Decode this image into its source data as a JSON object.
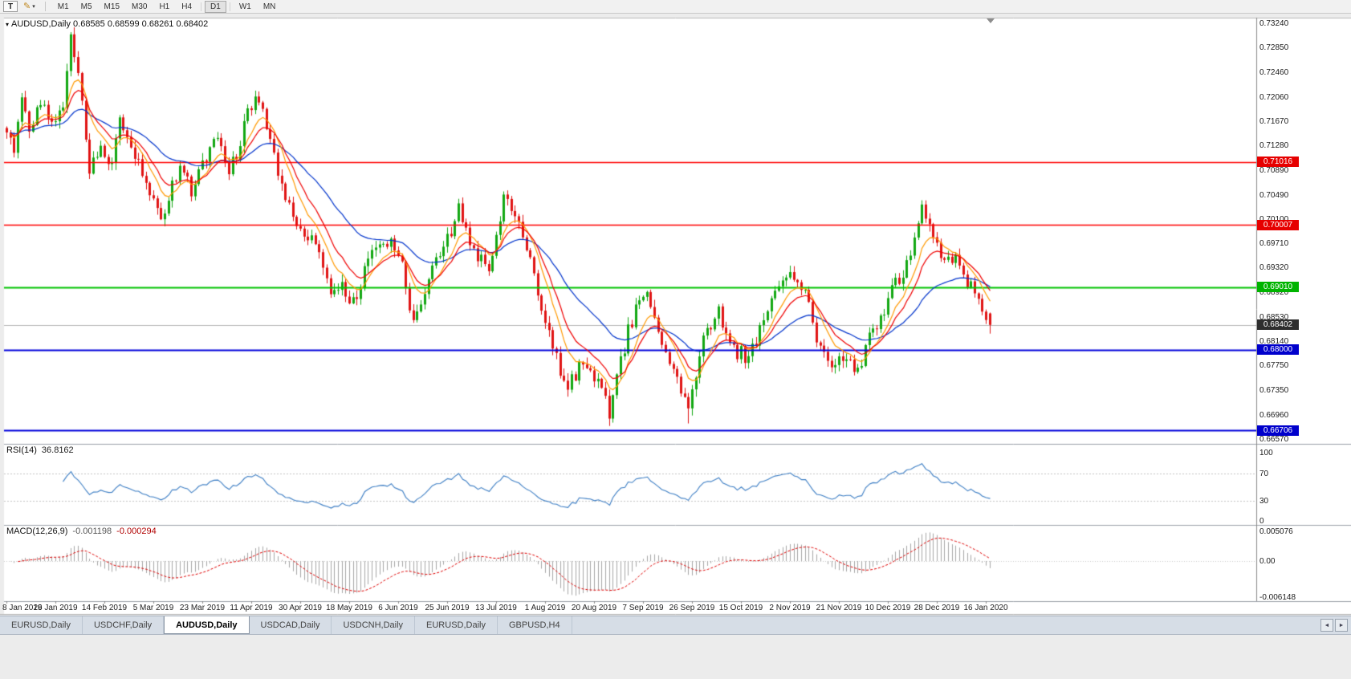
{
  "icons": {
    "pencil": "✎",
    "dropdown": "▾",
    "title_marker": "▾",
    "tab_left": "◄",
    "tab_right": "►"
  },
  "toolbar": {
    "text_tool_label": "T",
    "timeframes": [
      "M1",
      "M5",
      "M15",
      "M30",
      "H1",
      "H4",
      "D1",
      "W1",
      "MN"
    ],
    "active_timeframe": "D1"
  },
  "chart": {
    "title": {
      "display": "AUDUSD,Daily 0.68585 0.68599 0.68261 0.68402"
    },
    "price_axis": {
      "labels": [
        "0.73240",
        "0.72850",
        "0.72460",
        "0.72060",
        "0.71670",
        "0.71280",
        "0.70890",
        "0.70490",
        "0.70100",
        "0.69710",
        "0.69320",
        "0.68920",
        "0.68530",
        "0.68140",
        "0.67750",
        "0.67350",
        "0.66960",
        "0.66570"
      ]
    },
    "hlines": [
      {
        "price": 0.71016,
        "label": "0.71016",
        "line_color": "#ff0000",
        "label_bg": "#e60000",
        "width": 1.4
      },
      {
        "price": 0.70007,
        "label": "0.70007",
        "line_color": "#ff0000",
        "label_bg": "#e60000",
        "width": 1.4
      },
      {
        "price": 0.6901,
        "label": "0.69010",
        "line_color": "#00c400",
        "label_bg": "#00b400",
        "width": 2
      },
      {
        "price": 0.68,
        "label": "0.68000",
        "line_color": "#0000dc",
        "label_bg": "#0000cc",
        "width": 2
      },
      {
        "price": 0.66706,
        "label": "0.66706",
        "line_color": "#0000dc",
        "label_bg": "#0000cc",
        "width": 2
      }
    ],
    "bid": {
      "price": 0.68402,
      "label": "0.68402",
      "line_color": "#b4b4b4",
      "label_bg": "#2e2e2e"
    },
    "date_axis": {
      "labels": [
        "8 Jan 2019",
        "26 Jan 2019",
        "14 Feb 2019",
        "5 Mar 2019",
        "23 Mar 2019",
        "11 Apr 2019",
        "30 Apr 2019",
        "18 May 2019",
        "6 Jun 2019",
        "25 Jun 2019",
        "13 Jul 2019",
        "1 Aug 2019",
        "20 Aug 2019",
        "7 Sep 2019",
        "26 Sep 2019",
        "15 Oct 2019",
        "2 Nov 2019",
        "21 Nov 2019",
        "10 Dec 2019",
        "28 Dec 2019",
        "16 Jan 2020"
      ]
    }
  },
  "rsi_panel": {
    "label": "RSI(14)",
    "value": "36.8162",
    "axis_labels": [
      "100",
      "70",
      "30",
      "0"
    ]
  },
  "macd_panel": {
    "label": "MACD(12,26,9)",
    "value_main": "-0.001198",
    "value_signal": "-0.000294",
    "axis_labels": [
      {
        "text": "0.005076",
        "value": 0.005076
      },
      {
        "text": "0.00",
        "value": 0
      },
      {
        "text": "-0.006148",
        "value": -0.006148
      }
    ]
  },
  "tabs": {
    "items": [
      {
        "label": "EURUSD,Daily",
        "active": false
      },
      {
        "label": "USDCHF,Daily",
        "active": false
      },
      {
        "label": "AUDUSD,Daily",
        "active": true
      },
      {
        "label": "USDCAD,Daily",
        "active": false
      },
      {
        "label": "USDCNH,Daily",
        "active": false
      },
      {
        "label": "EURUSD,Daily",
        "active": false
      },
      {
        "label": "GBPUSD,H4",
        "active": false
      }
    ]
  },
  "chart_data": {
    "type": "candlestick",
    "symbol": "AUDUSD",
    "timeframe": "Daily",
    "seed": 9,
    "current_ohlc": {
      "open": 0.68585,
      "high": 0.68599,
      "low": 0.68261,
      "close": 0.68402
    },
    "y_axis": {
      "min": 0.6657,
      "max": 0.7324
    },
    "x_axis": {
      "bar_count": 262,
      "bars_per_tick": 13,
      "tick_labels": [
        "8 Jan 2019",
        "26 Jan 2019",
        "14 Feb 2019",
        "5 Mar 2019",
        "23 Mar 2019",
        "11 Apr 2019",
        "30 Apr 2019",
        "18 May 2019",
        "6 Jun 2019",
        "25 Jun 2019",
        "13 Jul 2019",
        "1 Aug 2019",
        "20 Aug 2019",
        "7 Sep 2019",
        "26 Sep 2019",
        "15 Oct 2019",
        "2 Nov 2019",
        "21 Nov 2019",
        "10 Dec 2019",
        "28 Dec 2019",
        "16 Jan 2020"
      ]
    },
    "bull_color": "#12a812",
    "bear_color": "#e01414",
    "price_path_anchors": [
      [
        0,
        0.7148
      ],
      [
        2,
        0.712
      ],
      [
        4,
        0.7205
      ],
      [
        6,
        0.715
      ],
      [
        9,
        0.7196
      ],
      [
        12,
        0.7163
      ],
      [
        15,
        0.719
      ],
      [
        17,
        0.7295
      ],
      [
        19,
        0.7242
      ],
      [
        22,
        0.7088
      ],
      [
        25,
        0.7125
      ],
      [
        28,
        0.71
      ],
      [
        30,
        0.7168
      ],
      [
        33,
        0.712
      ],
      [
        36,
        0.7082
      ],
      [
        39,
        0.7042
      ],
      [
        41,
        0.7015
      ],
      [
        44,
        0.706
      ],
      [
        46,
        0.709
      ],
      [
        49,
        0.7052
      ],
      [
        53,
        0.7105
      ],
      [
        56,
        0.714
      ],
      [
        59,
        0.7085
      ],
      [
        62,
        0.713
      ],
      [
        64,
        0.7185
      ],
      [
        67,
        0.7205
      ],
      [
        70,
        0.7135
      ],
      [
        74,
        0.7035
      ],
      [
        78,
        0.6995
      ],
      [
        82,
        0.6972
      ],
      [
        86,
        0.6895
      ],
      [
        89,
        0.691
      ],
      [
        91,
        0.6868
      ],
      [
        94,
        0.6905
      ],
      [
        96,
        0.6945
      ],
      [
        100,
        0.6975
      ],
      [
        104,
        0.6958
      ],
      [
        106,
        0.69
      ],
      [
        108,
        0.6848
      ],
      [
        111,
        0.6895
      ],
      [
        113,
        0.6925
      ],
      [
        118,
        0.699
      ],
      [
        120,
        0.703
      ],
      [
        124,
        0.6958
      ],
      [
        128,
        0.6925
      ],
      [
        132,
        0.7048
      ],
      [
        136,
        0.7005
      ],
      [
        140,
        0.6915
      ],
      [
        144,
        0.6825
      ],
      [
        146,
        0.678
      ],
      [
        149,
        0.6745
      ],
      [
        152,
        0.6775
      ],
      [
        155,
        0.6762
      ],
      [
        158,
        0.6745
      ],
      [
        160,
        0.67
      ],
      [
        163,
        0.679
      ],
      [
        168,
        0.688
      ],
      [
        170,
        0.6888
      ],
      [
        174,
        0.681
      ],
      [
        177,
        0.6775
      ],
      [
        181,
        0.6705
      ],
      [
        185,
        0.6825
      ],
      [
        189,
        0.686
      ],
      [
        193,
        0.68
      ],
      [
        197,
        0.679
      ],
      [
        201,
        0.685
      ],
      [
        205,
        0.691
      ],
      [
        209,
        0.692
      ],
      [
        212,
        0.6895
      ],
      [
        215,
        0.681
      ],
      [
        219,
        0.678
      ],
      [
        223,
        0.679
      ],
      [
        226,
        0.676
      ],
      [
        229,
        0.682
      ],
      [
        232,
        0.685
      ],
      [
        236,
        0.691
      ],
      [
        239,
        0.693
      ],
      [
        243,
        0.703
      ],
      [
        246,
        0.6985
      ],
      [
        249,
        0.694
      ],
      [
        252,
        0.6955
      ],
      [
        255,
        0.6905
      ],
      [
        258,
        0.688
      ],
      [
        261,
        0.684
      ]
    ],
    "spike_lows": {
      "160": 0.6678,
      "181": 0.6682
    },
    "spike_highs": {
      "17": 0.73,
      "243": 0.704
    },
    "horizontal_lines": [
      {
        "price": 0.71016,
        "color": "#ff0000"
      },
      {
        "price": 0.70007,
        "color": "#ff0000"
      },
      {
        "price": 0.6901,
        "color": "#00c400"
      },
      {
        "price": 0.68,
        "color": "#0000dc"
      },
      {
        "price": 0.66706,
        "color": "#0000dc"
      }
    ],
    "bid_line": {
      "price": 0.68402,
      "color": "#b4b4b4"
    },
    "moving_averages": [
      {
        "period": 8,
        "type": "ema",
        "color": "#ff9900"
      },
      {
        "period": 13,
        "type": "ema",
        "color": "#f00000"
      },
      {
        "period": 34,
        "type": "ema",
        "color": "#0033cc"
      }
    ],
    "indicators": [
      {
        "name": "RSI",
        "period": 14,
        "value": 36.8162,
        "levels": [
          70,
          30
        ],
        "range": [
          0,
          100
        ],
        "color": "#3b7dc4"
      },
      {
        "name": "MACD",
        "fast": 12,
        "slow": 26,
        "signal": 9,
        "value_main": -0.001198,
        "value_signal": -0.000294,
        "scale_max": 0.005076,
        "scale_min": -0.006148,
        "histogram_color": "#a6a6a6",
        "signal_color": "#e00000"
      }
    ]
  }
}
